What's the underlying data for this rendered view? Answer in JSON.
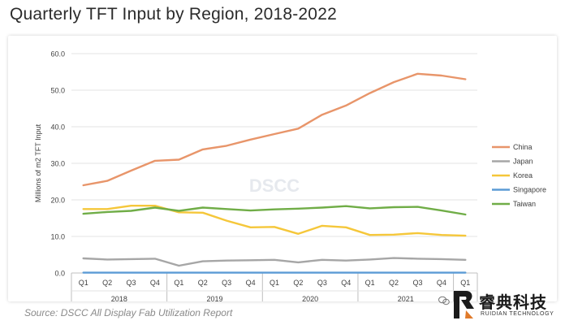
{
  "header": {
    "title": "Quarterly TFT Input by Region, 2018-2022",
    "source": "Source: DSCC All Display Fab Utilization Report"
  },
  "branding": {
    "watermark": "DSCC",
    "logo_text": "睿典科技",
    "logo_sub": "RUIDIAN TECHNOLOGY",
    "logo_icon": "ruidian-logo-icon",
    "wechat_icon": "wechat-icon"
  },
  "chart_data": {
    "type": "line",
    "title": "Quarterly TFT Input by Region, 2018-2022",
    "ylabel": "Millions of m2 TFT Input",
    "xlabel": "",
    "ylim": [
      0,
      60
    ],
    "yticks": [
      "0.0",
      "10.0",
      "20.0",
      "30.0",
      "40.0",
      "50.0",
      "60.0"
    ],
    "grid": "horizontal",
    "legend_position": "right",
    "categories": [
      "Q1",
      "Q2",
      "Q3",
      "Q4",
      "Q1",
      "Q2",
      "Q3",
      "Q4",
      "Q1",
      "Q2",
      "Q3",
      "Q4",
      "Q1",
      "Q2",
      "Q3",
      "Q4",
      "Q1"
    ],
    "year_groups": [
      {
        "label": "2018",
        "count": 4
      },
      {
        "label": "2019",
        "count": 4
      },
      {
        "label": "2020",
        "count": 4
      },
      {
        "label": "2021",
        "count": 4
      },
      {
        "label": "",
        "count": 1
      }
    ],
    "series": [
      {
        "name": "China",
        "color": "#e8956a",
        "values": [
          24.0,
          25.2,
          28.0,
          30.7,
          31.0,
          33.8,
          34.8,
          36.5,
          38.0,
          39.5,
          43.3,
          45.8,
          49.2,
          52.2,
          54.5,
          54.0,
          53.0
        ]
      },
      {
        "name": "Japan",
        "color": "#a6a6a6",
        "values": [
          4.0,
          3.7,
          3.8,
          3.9,
          2.0,
          3.2,
          3.4,
          3.5,
          3.6,
          2.9,
          3.6,
          3.4,
          3.7,
          4.1,
          3.9,
          3.8,
          3.6
        ]
      },
      {
        "name": "Korea",
        "color": "#f5c73a",
        "values": [
          17.5,
          17.5,
          18.4,
          18.4,
          16.6,
          16.5,
          14.3,
          12.5,
          12.6,
          10.7,
          12.9,
          12.5,
          10.4,
          10.5,
          10.9,
          10.4,
          10.2
        ]
      },
      {
        "name": "Singapore",
        "color": "#5b9bd5",
        "values": [
          0.1,
          0.1,
          0.1,
          0.1,
          0.1,
          0.1,
          0.1,
          0.1,
          0.1,
          0.1,
          0.1,
          0.1,
          0.1,
          0.1,
          0.1,
          0.1,
          0.1
        ]
      },
      {
        "name": "Taiwan",
        "color": "#70ad47",
        "values": [
          16.2,
          16.7,
          17.0,
          17.9,
          17.0,
          17.9,
          17.5,
          17.1,
          17.4,
          17.6,
          17.9,
          18.3,
          17.7,
          18.0,
          18.1,
          17.1,
          16.0
        ]
      }
    ]
  }
}
